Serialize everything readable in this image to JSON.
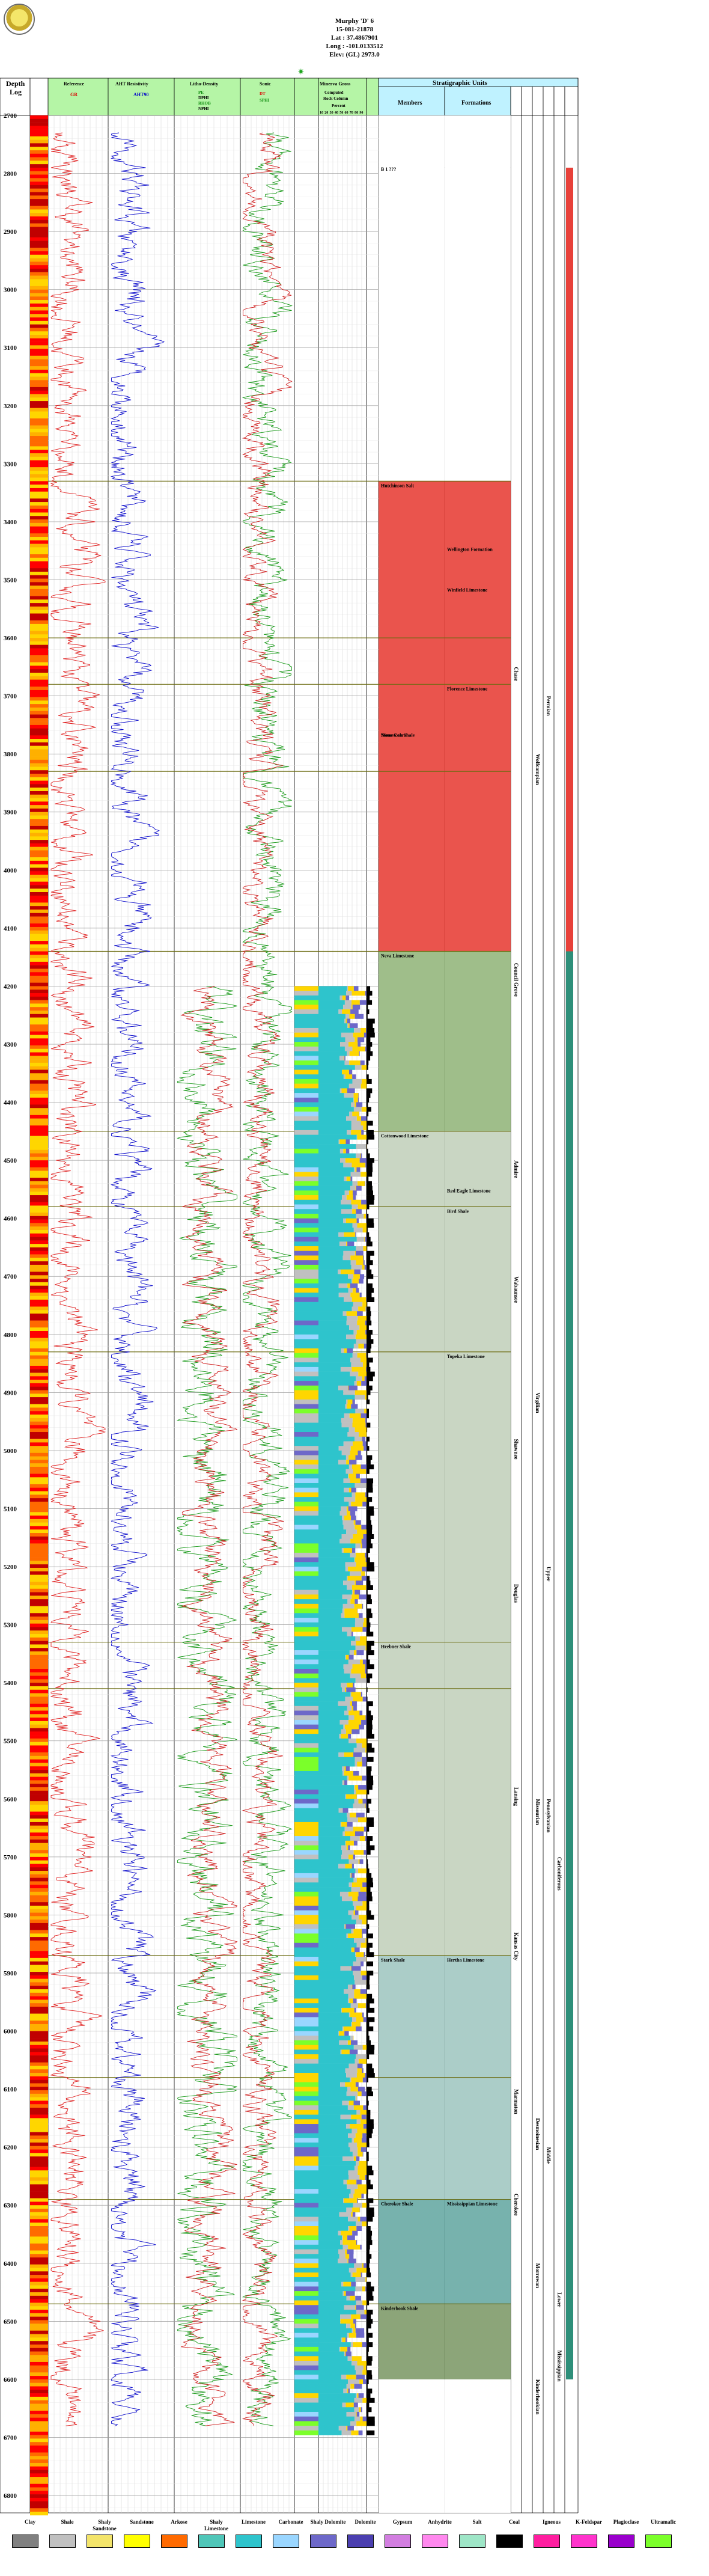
{
  "well": {
    "name": "Murphy 'D' 6",
    "api": "15-081-21878",
    "lat": "Lat : 37.4867901",
    "long": "Long : -101.0133512",
    "elev": "Elev: (GL) 2973.0"
  },
  "column_headers": {
    "depth": "Depth",
    "log": "Log",
    "reference_title": "Reference",
    "resistivity_title": "AHT Resistivity",
    "litho_title": "Litho-Density",
    "sonic_title": "Sonic",
    "mineral_title": "Minerva Gross",
    "computed_title": "Computed",
    "rock_column": "Rock Column",
    "percent": "Percent",
    "percent_ticks": [
      "10",
      "20",
      "30",
      "40",
      "50",
      "60",
      "70",
      "80",
      "90"
    ],
    "strat_title": "Stratigraphic Units",
    "members": "Members",
    "formations": "Formations"
  },
  "curve_labels": {
    "reference": "GR",
    "resistivity": "AHT90",
    "litho": [
      "PE",
      "DPHI",
      "RHOB",
      "NPHI"
    ],
    "sonic": [
      "DT",
      "SPHI"
    ]
  },
  "depth_labels": [
    "2700",
    "2800",
    "2900",
    "3000",
    "3100",
    "3200",
    "3300",
    "3400",
    "3500",
    "3600",
    "3700",
    "3800",
    "3900",
    "4000",
    "4100",
    "4200",
    "4300",
    "4400",
    "4500",
    "4600",
    "4700",
    "4800",
    "4900",
    "5000",
    "5100",
    "5200",
    "5300",
    "5400",
    "5500",
    "5600",
    "5700",
    "5800",
    "5900",
    "6000",
    "6100",
    "6200",
    "6300",
    "6400",
    "6500",
    "6600",
    "6700",
    "6800"
  ],
  "member_labels": [
    {
      "text": "B 1 ???",
      "depth": 2785
    },
    {
      "text": "Hutchinson Salt",
      "depth": 3330
    },
    {
      "text": "Ninnescah Shale",
      "depth": 3760
    },
    {
      "text": "Stone Corral",
      "depth": 3760
    },
    {
      "text": "Neva Limestone",
      "depth": 4140
    },
    {
      "text": "Cottonwood Limestone",
      "depth": 4450
    },
    {
      "text": "Heebner Shale",
      "depth": 5330
    },
    {
      "text": "Stark Shale",
      "depth": 5870
    },
    {
      "text": "Cherokee Shale",
      "depth": 6290
    },
    {
      "text": "Kinderhook Shale",
      "depth": 6470
    }
  ],
  "formation_labels": [
    {
      "text": "Wellington Formation",
      "depth": 3440
    },
    {
      "text": "Florence Limestone",
      "depth": 3680
    },
    {
      "text": "Winfield Limestone",
      "depth": 3510
    },
    {
      "text": "Red Eagle Limestone",
      "depth": 4545
    },
    {
      "text": "Bird Shale",
      "depth": 4580
    },
    {
      "text": "Topeka Limestone",
      "depth": 4830
    },
    {
      "text": "Hertha Limestone",
      "depth": 5870
    },
    {
      "text": "Mississippian Limestone",
      "depth": 6290
    }
  ],
  "group_labels": [
    {
      "text": "Chase",
      "depth": 3650
    },
    {
      "text": "Council Grove",
      "depth": 4160
    },
    {
      "text": "Admire",
      "depth": 4500
    },
    {
      "text": "Wabaunsee",
      "depth": 4700
    },
    {
      "text": "Shawnee",
      "depth": 4980
    },
    {
      "text": "Douglas",
      "depth": 5230
    },
    {
      "text": "Lansing",
      "depth": 5580
    },
    {
      "text": "Kansas City",
      "depth": 5830
    },
    {
      "text": "Marmaton",
      "depth": 6100
    },
    {
      "text": "Cherokee",
      "depth": 6280
    }
  ],
  "series_labels": [
    {
      "text": "Wolfcampian",
      "depth": 3800
    },
    {
      "text": "Virgilian",
      "depth": 4900
    },
    {
      "text": "Missourian",
      "depth": 5600
    },
    {
      "text": "Desmoinesian",
      "depth": 6150
    },
    {
      "text": "Morrowan",
      "depth": 6400
    },
    {
      "text": "Kinderhookian",
      "depth": 6600
    }
  ],
  "system_labels": [
    {
      "text": "Permian",
      "depth": 3700
    },
    {
      "text": "Upper",
      "depth": 5200
    },
    {
      "text": "Pennsylvanian",
      "depth": 5600
    },
    {
      "text": "Middle",
      "depth": 6200
    },
    {
      "text": "Lower",
      "depth": 6450
    },
    {
      "text": "Carboniferous",
      "depth": 5700
    },
    {
      "text": "Mississippian",
      "depth": 6550
    }
  ],
  "strat_colors": [
    "#e8413a",
    "#95b77d",
    "#c3d1bc",
    "#a2c8c2",
    "#68aaa4",
    "#7f9b6a",
    "#ffffff"
  ],
  "legend": [
    {
      "label": "Clay",
      "color": "#808080"
    },
    {
      "label": "Shale",
      "color": "#c0c0c0"
    },
    {
      "label": "Shaly Sandstone",
      "color": "#f3e46a"
    },
    {
      "label": "Sandstone",
      "color": "#ffff00"
    },
    {
      "label": "Arkose",
      "color": "#ff6a00"
    },
    {
      "label": "Shaly Limestone",
      "color": "#4fc6b8"
    },
    {
      "label": "Limestone",
      "color": "#2ec4cc"
    },
    {
      "label": "Carbonate",
      "color": "#9ad6ff"
    },
    {
      "label": "Shaly Dolomite",
      "color": "#6d68c9"
    },
    {
      "label": "Dolomite",
      "color": "#4b3fb0"
    },
    {
      "label": "Gypsum",
      "color": "#d27ee0"
    },
    {
      "label": "Anhydrite",
      "color": "#ff88ee"
    },
    {
      "label": "Salt",
      "color": "#9ee6c7"
    },
    {
      "label": "Coal",
      "color": "#000000"
    },
    {
      "label": "Igneous",
      "color": "#ff1ea0"
    },
    {
      "label": "K-Feldspar",
      "color": "#ff33cc"
    },
    {
      "label": "Plagioclase",
      "color": "#9900cc"
    },
    {
      "label": "Ultramafic",
      "color": "#7bff2a"
    }
  ]
}
